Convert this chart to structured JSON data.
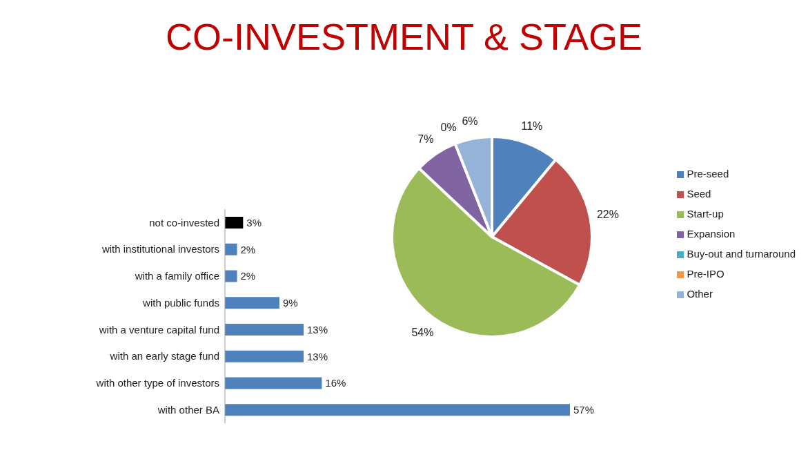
{
  "chart_data": [
    {
      "type": "bar",
      "title": "CO-INVESTMENT & STAGE",
      "orientation": "horizontal",
      "categories": [
        "not co-invested",
        "with institutional investors",
        "with a family office",
        "with public funds",
        "with a venture capital fund",
        "with an early stage fund",
        "with other type of investors",
        "with other BA"
      ],
      "values": [
        3,
        2,
        2,
        9,
        13,
        13,
        16,
        57
      ],
      "colors": [
        "#000000",
        "#4f81bd",
        "#4f81bd",
        "#4f81bd",
        "#4f81bd",
        "#4f81bd",
        "#4f81bd",
        "#4f81bd"
      ],
      "value_labels": [
        "3%",
        "2%",
        "2%",
        "9%",
        "13%",
        "13%",
        "16%",
        "57%"
      ]
    },
    {
      "type": "pie",
      "categories": [
        "Pre-seed",
        "Seed",
        "Start-up",
        "Expansion",
        "Buy-out and turnaround",
        "Pre-IPO",
        "Other"
      ],
      "values": [
        11,
        22,
        54,
        7,
        0,
        0,
        6
      ],
      "colors": [
        "#4f81bd",
        "#c0504d",
        "#9bbb59",
        "#8064a2",
        "#4bacc6",
        "#f79646",
        "#95b3d7"
      ],
      "value_labels": [
        "11%",
        "22%",
        "54%",
        "7%",
        "0%",
        null,
        "6%"
      ],
      "legend": "right"
    }
  ]
}
